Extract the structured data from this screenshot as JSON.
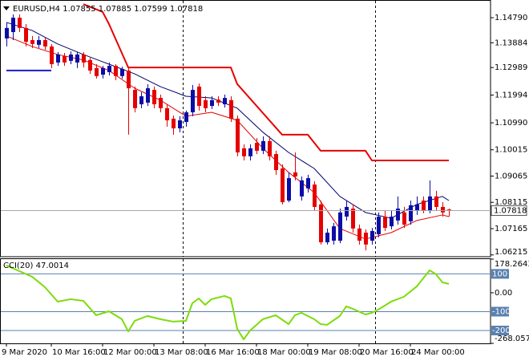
{
  "chart_data": [
    {
      "type": "candlestick",
      "title": "EURUSD,H4",
      "categories": [
        "9 Mar 2020",
        null,
        null,
        null,
        null,
        null,
        null,
        "10 Mar 16:00",
        null,
        null,
        null,
        null,
        null,
        null,
        null,
        "12 Mar 00:00",
        null,
        null,
        null,
        null,
        null,
        null,
        null,
        "13 Mar 08:00",
        null,
        null,
        null,
        null,
        null,
        null,
        null,
        "16 Mar 16:00",
        null,
        null,
        null,
        null,
        null,
        null,
        null,
        "18 Mar 00:00",
        null,
        null,
        null,
        null,
        null,
        null,
        null,
        "19 Mar 08:00",
        null,
        null,
        null,
        null,
        null,
        null,
        null,
        "20 Mar 16:00",
        null,
        null,
        null,
        null,
        null,
        null,
        null,
        "24 Mar 00:00",
        null,
        null,
        null,
        null,
        null,
        null
      ],
      "open": [
        1.1404,
        1.1427,
        1.1479,
        1.1442,
        1.1398,
        1.1381,
        1.1398,
        1.1375,
        1.1317,
        1.134,
        1.1323,
        1.1317,
        1.1346,
        1.1326,
        1.1297,
        1.1273,
        1.1282,
        1.1305,
        1.1268,
        1.1288,
        1.1218,
        1.1166,
        1.1172,
        1.1218,
        1.1189,
        1.1152,
        1.1114,
        1.1079,
        1.1102,
        1.1137,
        1.123,
        1.1181,
        1.116,
        1.1183,
        1.1166,
        1.1181,
        1.1114,
        1.1007,
        1.0978,
        1.1027,
        1.0998,
        1.1033,
        1.0986,
        1.0934,
        1.0818,
        1.092,
        1.0833,
        1.0862,
        1.0876,
        1.0804,
        1.0667,
        1.0673,
        1.0673,
        1.076,
        1.0789,
        1.0717,
        1.0702,
        1.0673,
        1.0696,
        1.076,
        1.0725,
        1.0746,
        1.0775,
        1.0743,
        1.0783,
        1.0818,
        1.0783,
        1.0833,
        1.0795,
        1.07855
      ],
      "high": [
        1.1462,
        1.1491,
        1.1491,
        1.1456,
        1.1413,
        1.1413,
        1.1407,
        1.1384,
        1.1355,
        1.1352,
        1.1357,
        1.1355,
        1.1355,
        1.1334,
        1.1311,
        1.1305,
        1.1317,
        1.1311,
        1.1302,
        1.1297,
        1.123,
        1.121,
        1.1239,
        1.123,
        1.1201,
        1.1166,
        1.1125,
        1.1123,
        1.1143,
        1.1236,
        1.1241,
        1.1195,
        1.1195,
        1.1195,
        1.1201,
        1.1195,
        1.1125,
        1.1021,
        1.1021,
        1.1044,
        1.105,
        1.105,
        1.0998,
        1.0949,
        1.092,
        1.0992,
        1.0905,
        1.0911,
        1.0888,
        1.0818,
        1.0717,
        1.0737,
        1.0789,
        1.0818,
        1.0804,
        1.0731,
        1.0714,
        1.0719,
        1.0775,
        1.0783,
        1.0783,
        1.0833,
        1.0795,
        1.0818,
        1.0833,
        1.0833,
        1.0891,
        1.0853,
        1.0812,
        1.07885
      ],
      "low": [
        1.1375,
        1.1398,
        1.1427,
        1.1375,
        1.1369,
        1.1369,
        1.1363,
        1.1297,
        1.1305,
        1.1305,
        1.1311,
        1.1297,
        1.1299,
        1.1276,
        1.1259,
        1.1259,
        1.127,
        1.1253,
        1.1259,
        1.1056,
        1.1137,
        1.1152,
        1.116,
        1.1152,
        1.1137,
        1.1085,
        1.1056,
        1.1065,
        1.1085,
        1.1123,
        1.1143,
        1.1137,
        1.1149,
        1.116,
        1.1154,
        1.1102,
        1.0978,
        1.0963,
        1.0963,
        1.0986,
        1.0986,
        1.0963,
        1.0911,
        1.0804,
        1.0812,
        1.0891,
        1.0818,
        1.0847,
        1.0783,
        1.0659,
        1.0659,
        1.0659,
        1.0664,
        1.0746,
        1.0702,
        1.0659,
        1.0638,
        1.0659,
        1.0685,
        1.0708,
        1.0714,
        1.0731,
        1.0719,
        1.0731,
        1.0766,
        1.0772,
        1.0772,
        1.0783,
        1.076,
        1.07599
      ],
      "close": [
        1.1442,
        1.1479,
        1.1442,
        1.1392,
        1.1384,
        1.1398,
        1.1375,
        1.1311,
        1.1346,
        1.1317,
        1.1346,
        1.1346,
        1.1317,
        1.1288,
        1.1268,
        1.1297,
        1.1305,
        1.1268,
        1.1294,
        1.1224,
        1.1152,
        1.1195,
        1.1224,
        1.1166,
        1.1152,
        1.1108,
        1.1079,
        1.1108,
        1.1137,
        1.1218,
        1.116,
        1.1152,
        1.1181,
        1.1172,
        1.1189,
        1.1114,
        1.0992,
        1.0978,
        1.1007,
        1.0998,
        1.1033,
        1.0978,
        1.0928,
        1.0812,
        1.0899,
        1.0905,
        1.0891,
        1.0899,
        1.0795,
        1.0667,
        1.0702,
        1.0725,
        1.0775,
        1.0795,
        1.0717,
        1.0673,
        1.0659,
        1.0708,
        1.076,
        1.0719,
        1.076,
        1.0789,
        1.0731,
        1.0801,
        1.0804,
        1.0783,
        1.0833,
        1.0795,
        1.0775,
        1.07818
      ],
      "up_color": "#0c0ca8",
      "down_color": "#e60000",
      "ma_lines": [
        {
          "color": "#00006e",
          "x": [
            0,
            4,
            8,
            12,
            16,
            20,
            24,
            28,
            32,
            36,
            40,
            44,
            48,
            52,
            56,
            60,
            64,
            68,
            69
          ],
          "values": [
            1.1462,
            1.1433,
            1.1384,
            1.1346,
            1.1311,
            1.1276,
            1.123,
            1.1195,
            1.1189,
            1.1152,
            1.1065,
            1.0992,
            1.0934,
            1.0833,
            1.0775,
            1.0754,
            1.0804,
            1.0833,
            1.0818
          ]
        },
        {
          "color": "#e60000",
          "x": [
            0,
            4,
            8,
            12,
            16,
            20,
            24,
            28,
            32,
            36,
            40,
            44,
            48,
            52,
            56,
            60,
            64,
            68,
            69
          ],
          "values": [
            1.1413,
            1.1375,
            1.1346,
            1.1326,
            1.1288,
            1.1224,
            1.1181,
            1.1123,
            1.1137,
            1.1108,
            1.1007,
            1.092,
            1.0847,
            1.0717,
            1.0679,
            1.0702,
            1.0746,
            1.0766,
            1.076
          ]
        }
      ],
      "stop_lines": [
        {
          "color": "#e60000",
          "x": [
            12,
            15,
            16,
            19,
            35,
            36,
            43,
            47,
            49,
            56,
            57,
            69
          ],
          "values": [
            1.1528,
            1.15,
            1.1456,
            1.1299,
            1.1299,
            1.1239,
            1.1056,
            1.1056,
            1.0998,
            1.0998,
            1.0963,
            1.0963
          ]
        },
        {
          "color": "#1c1cc8",
          "x": [
            0,
            7
          ],
          "values": [
            1.1288,
            1.1288
          ]
        }
      ],
      "ylim": [
        1.0615,
        1.1543
      ],
      "yticks": [
        {
          "value": 1.1479,
          "label": "1.14790"
        },
        1.13884,
        1.12989,
        1.11994,
        {
          "value": 1.1099,
          "label": "1.10990"
        },
        1.10015,
        1.09065,
        1.08115,
        1.07165,
        1.06215
      ]
    },
    {
      "type": "line",
      "title": "CCI(20)",
      "color": "#7ddc0a",
      "x": [
        0,
        2,
        4,
        6,
        8,
        10,
        12,
        14,
        16,
        18,
        19,
        20,
        22,
        24,
        26,
        28,
        29,
        30,
        31,
        32,
        34,
        35,
        36,
        37,
        38,
        40,
        42,
        44,
        45,
        46,
        48,
        49,
        50,
        52,
        53,
        54,
        56,
        57,
        58,
        60,
        62,
        64,
        66,
        67,
        68,
        69
      ],
      "values": [
        145,
        115,
        85,
        30,
        -47,
        -34,
        -43,
        -119,
        -98,
        -140,
        -205,
        -149,
        -123,
        -140,
        -153,
        -149,
        -55,
        -30,
        -64,
        -34,
        -17,
        -30,
        -191,
        -247,
        -200,
        -140,
        -119,
        -166,
        -119,
        -106,
        -140,
        -166,
        -170,
        -123,
        -72,
        -85,
        -115,
        -106,
        -89,
        -47,
        -21,
        34,
        119,
        98,
        55,
        47.0014
      ],
      "ylim": [
        -268.0574,
        178.2643
      ],
      "yticks": [
        178.2643,
        {
          "value": 0,
          "label": "0.00"
        },
        -268.0574
      ],
      "levels": [
        100,
        -100,
        -200
      ],
      "level_color": "#5a80b0"
    }
  ]
}
